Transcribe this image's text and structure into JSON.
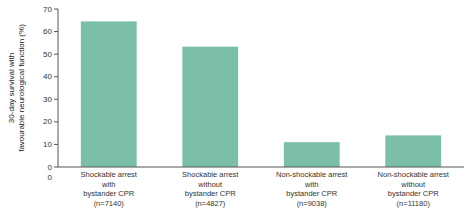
{
  "chart_data": {
    "type": "bar",
    "categories": [
      "Shockable arrest\nwith\nbystander CPR\n(n=7140)",
      "Shockable arrest\nwithout\nbystander CPR\n(n=4827)",
      "Non-shockable arrest\nwith\nbystander CPR\n(n=9038)",
      "Non-shockable arrest\nwithout\nbystander CPR\n(n=11180)"
    ],
    "values": [
      64.5,
      53.3,
      11.0,
      14.0
    ],
    "color": "#7BBFAA",
    "ylabel": "30-day survival with\nfavourable neurological function (%)",
    "ylim": [
      0,
      70
    ],
    "yticks": [
      0,
      10,
      20,
      30,
      40,
      50,
      60,
      70
    ],
    "grid": false,
    "annotations": [
      {
        "text": "0"
      }
    ]
  }
}
